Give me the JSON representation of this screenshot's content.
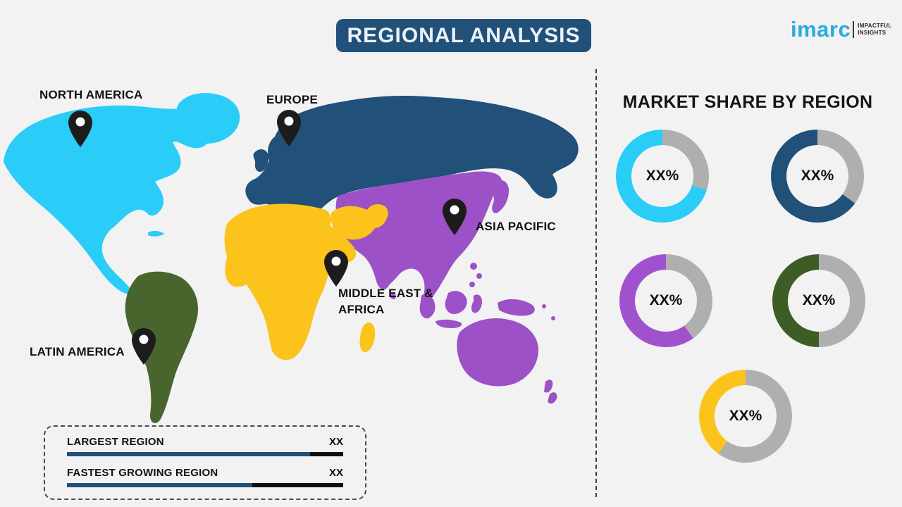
{
  "title": "REGIONAL ANALYSIS",
  "logo": {
    "brand": "imarc",
    "tagline_line1": "IMPACTFUL",
    "tagline_line2": "INSIGHTS"
  },
  "colors": {
    "background": "#F2F2F2",
    "banner": "#215079",
    "logo": "#29AAE1",
    "bar_track": "#0E0E0E",
    "pin": "#1C1C1C"
  },
  "map": {
    "regions": [
      {
        "id": "north-america",
        "label": "NORTH AMERICA",
        "map_color": "#29CDF8"
      },
      {
        "id": "europe",
        "label": "EUROPE",
        "map_color": "#215079"
      },
      {
        "id": "asia-pacific",
        "label": "ASIA PACIFIC",
        "map_color": "#9C51C6"
      },
      {
        "id": "middle-east-africa",
        "label": "MIDDLE EAST & AFRICA",
        "map_color": "#FCC31D"
      },
      {
        "id": "latin-america",
        "label": "LATIN AMERICA",
        "map_color": "#47652C"
      }
    ]
  },
  "legend": {
    "rows": [
      {
        "label": "LARGEST REGION",
        "value": "XX",
        "bar_fill_pct": 88
      },
      {
        "label": "FASTEST GROWING REGION",
        "value": "XX",
        "bar_fill_pct": 67
      }
    ]
  },
  "market_share": {
    "heading": "MARKET SHARE BY REGION",
    "track_color": "#AFAFAF",
    "donuts": [
      {
        "region": "North America",
        "value_label": "XX%",
        "color": "#29CDF8",
        "colored_pct": 70
      },
      {
        "region": "Europe",
        "value_label": "XX%",
        "color": "#215079",
        "colored_pct": 65
      },
      {
        "region": "Asia Pacific",
        "value_label": "XX%",
        "color": "#A052CE",
        "colored_pct": 60
      },
      {
        "region": "Latin America",
        "value_label": "XX%",
        "color": "#3E5D26",
        "colored_pct": 50
      },
      {
        "region": "Middle East & Africa",
        "value_label": "XX%",
        "color": "#FCC31D",
        "colored_pct": 40
      }
    ]
  },
  "chart_data": {
    "type": "pie",
    "title": "MARKET SHARE BY REGION",
    "note": "All values are XX placeholders in the source infographic; arc fractions below are as drawn.",
    "series": [
      {
        "name": "North America",
        "value_label": "XX%",
        "arc_fraction_pct": 70,
        "color": "#29CDF8"
      },
      {
        "name": "Europe",
        "value_label": "XX%",
        "arc_fraction_pct": 65,
        "color": "#215079"
      },
      {
        "name": "Asia Pacific",
        "value_label": "XX%",
        "arc_fraction_pct": 60,
        "color": "#A052CE"
      },
      {
        "name": "Latin America",
        "value_label": "XX%",
        "arc_fraction_pct": 50,
        "color": "#3E5D26"
      },
      {
        "name": "Middle East & Africa",
        "value_label": "XX%",
        "arc_fraction_pct": 40,
        "color": "#FCC31D"
      }
    ],
    "legend_bars": [
      {
        "label": "LARGEST REGION",
        "value": "XX",
        "fill_pct": 88
      },
      {
        "label": "FASTEST GROWING REGION",
        "value": "XX",
        "fill_pct": 67
      }
    ]
  }
}
